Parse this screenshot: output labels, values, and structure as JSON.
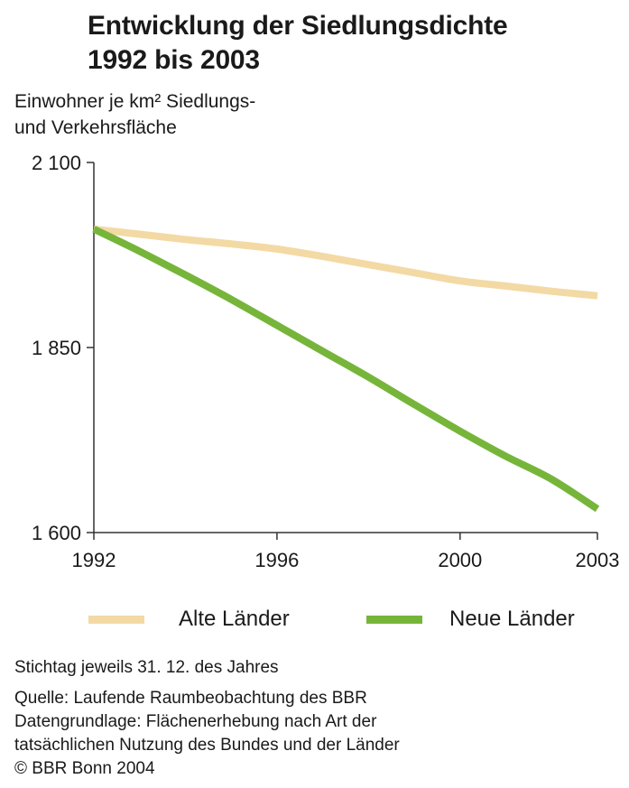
{
  "title_line1": "Entwicklung der Siedlungsdichte",
  "title_line2": "1992 bis 2003",
  "ylabel_line1": "Einwohner je km² Siedlungs-",
  "ylabel_line2": "und Verkehrsfläche",
  "chart_data": {
    "type": "line",
    "title": "Entwicklung der Siedlungsdichte 1992 bis 2003",
    "ylabel": "Einwohner je km² Siedlungs- und Verkehrsfläche",
    "xlabel": "",
    "xlim": [
      1992,
      2003
    ],
    "ylim": [
      1600,
      2100
    ],
    "x_ticks": [
      1992,
      1996,
      2000,
      2003
    ],
    "x_tick_labels": [
      "1992",
      "1996",
      "2000",
      "2003"
    ],
    "y_ticks": [
      1600,
      1850,
      2100
    ],
    "y_tick_labels": [
      "1 600",
      "1 850",
      "2 100"
    ],
    "grid": false,
    "legend_position": "bottom",
    "series": [
      {
        "name": "Alte Länder",
        "color": "#f3d9a4",
        "x": [
          1992,
          1993,
          1994,
          1995,
          1996,
          1997,
          1998,
          1999,
          2000,
          2001,
          2002,
          2003
        ],
        "values": [
          2010,
          2003,
          1996,
          1990,
          1983,
          1973,
          1962,
          1951,
          1940,
          1933,
          1926,
          1920
        ]
      },
      {
        "name": "Neue Länder",
        "color": "#76b53a",
        "x": [
          1992,
          1993,
          1994,
          1995,
          1996,
          1997,
          1998,
          1999,
          2000,
          2001,
          2002,
          2003
        ],
        "values": [
          2010,
          1980,
          1948,
          1915,
          1880,
          1845,
          1810,
          1773,
          1737,
          1703,
          1672,
          1632
        ]
      }
    ]
  },
  "notes": {
    "stichtag": "Stichtag jeweils 31. 12. des Jahres",
    "quelle": "Quelle: Laufende Raumbeobachtung des BBR",
    "datengrundlage_1": "Datengrundlage: Flächenerhebung nach Art der",
    "datengrundlage_2": "tatsächlichen Nutzung des Bundes und der Länder",
    "copyright": "© BBR Bonn 2004"
  }
}
